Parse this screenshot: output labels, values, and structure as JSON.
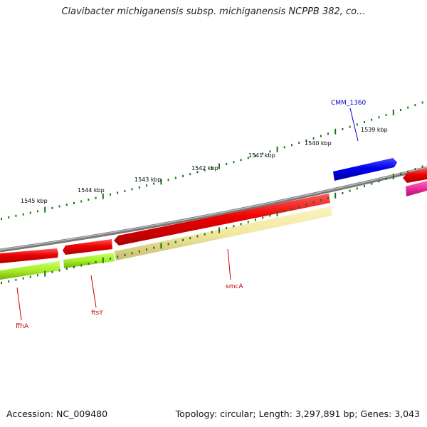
{
  "title": "Clavibacter michiganensis subsp. michiganensis NCPPB 382, co...",
  "footer": {
    "accession": "Accession: NC_009480",
    "summary": "Topology: circular; Length: 3,297,891 bp; Genes: 3,043"
  },
  "kbp_ticks": [
    {
      "kbp": 1545,
      "label": "1545 kbp"
    },
    {
      "kbp": 1544,
      "label": "1544 kbp"
    },
    {
      "kbp": 1543,
      "label": "1543 kbp"
    },
    {
      "kbp": 1542,
      "label": "1542 kbp"
    },
    {
      "kbp": 1541,
      "label": "1541 kbp"
    },
    {
      "kbp": 1540,
      "label": "1540 kbp"
    },
    {
      "kbp": 1539,
      "label": "1539 kbp"
    }
  ],
  "genes": [
    {
      "id": "ffhA",
      "label": "ffhA",
      "label_color": "#cc0000"
    },
    {
      "id": "ftsY",
      "label": "ftsY",
      "label_color": "#cc0000"
    },
    {
      "id": "smcA",
      "label": "smcA",
      "label_color": "#cc0000"
    },
    {
      "id": "CMM_1360",
      "label": "CMM_1360",
      "label_color": "#0000cc"
    }
  ],
  "colors": {
    "backbone": "#888888",
    "cds_red": "#ee0000",
    "cds_blue": "#0000ee",
    "cds_magenta": "#ee2a9a",
    "feature_green": "#a8ee2a",
    "feature_khaki": "#f2e8a0",
    "tick_green": "#117711"
  }
}
